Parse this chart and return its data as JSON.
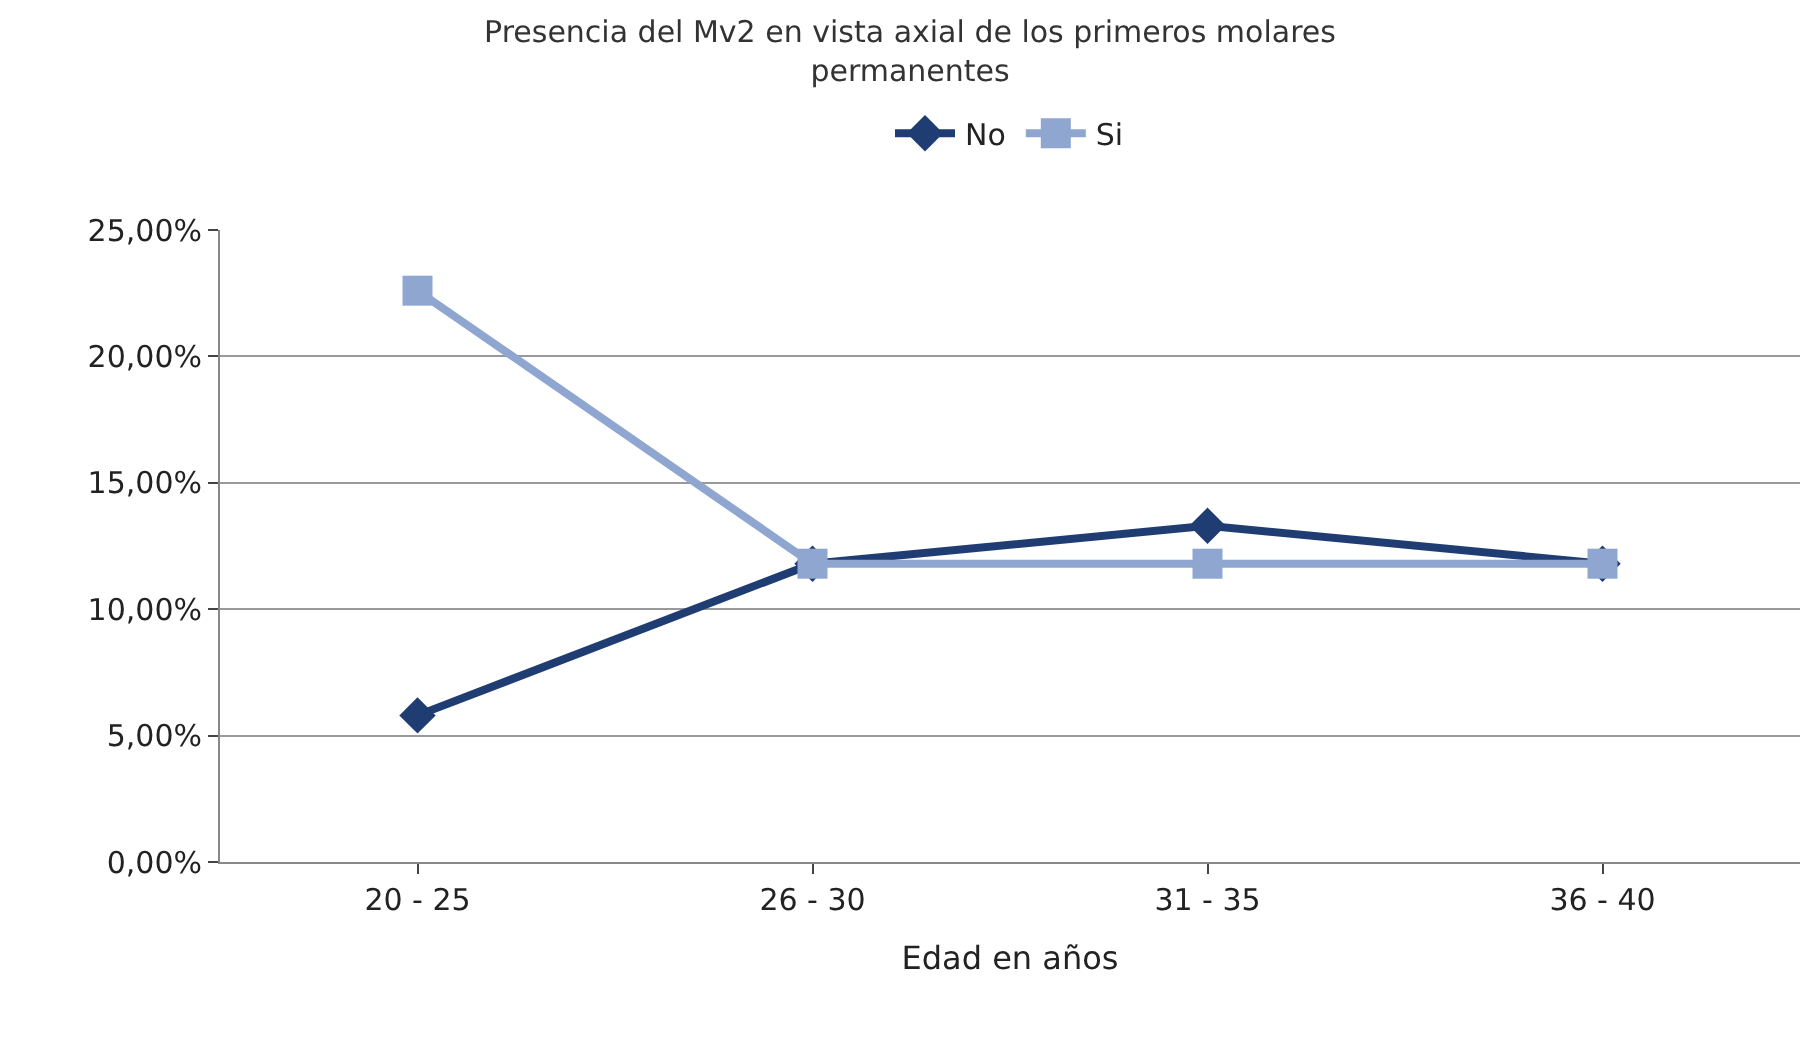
{
  "chart_data": {
    "type": "line",
    "title": "Presencia del Mv2 en vista axial de los primeros molares\npermanentes",
    "xlabel": "Edad en años",
    "categories": [
      "20 - 25",
      "26 - 30",
      "31 - 35",
      "36 - 40"
    ],
    "series": [
      {
        "name": "No",
        "color": "#1f3d73",
        "marker": "diamond",
        "values": [
          5.8,
          11.8,
          13.3,
          11.8
        ]
      },
      {
        "name": "Si",
        "color": "#8fa6d0",
        "marker": "square",
        "values": [
          22.6,
          11.8,
          11.8,
          11.8
        ]
      }
    ],
    "ylim": [
      0,
      25
    ],
    "yticks": [
      {
        "value": 0,
        "label": "0,00%"
      },
      {
        "value": 5,
        "label": "5,00%"
      },
      {
        "value": 10,
        "label": "10,00%"
      },
      {
        "value": 15,
        "label": "15,00%"
      },
      {
        "value": 20,
        "label": "20,00%"
      },
      {
        "value": 25,
        "label": "25,00%"
      }
    ],
    "grid": "y",
    "legend": "top",
    "line_style": "solid"
  }
}
